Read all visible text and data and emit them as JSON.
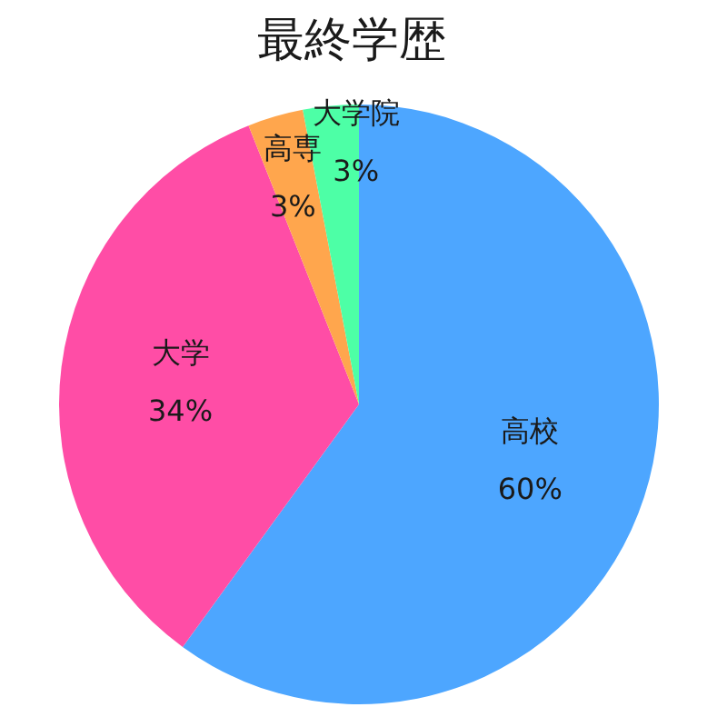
{
  "chart_data": {
    "type": "pie",
    "title": "最終学歴",
    "categories": [
      "高校",
      "大学",
      "高専",
      "大学院"
    ],
    "values": [
      60,
      34,
      3,
      3
    ],
    "colors": [
      "#4da6ff",
      "#ff4da6",
      "#ffa64d",
      "#4dffa6"
    ],
    "value_labels": [
      "60%",
      "34%",
      "3%",
      "3%"
    ]
  }
}
